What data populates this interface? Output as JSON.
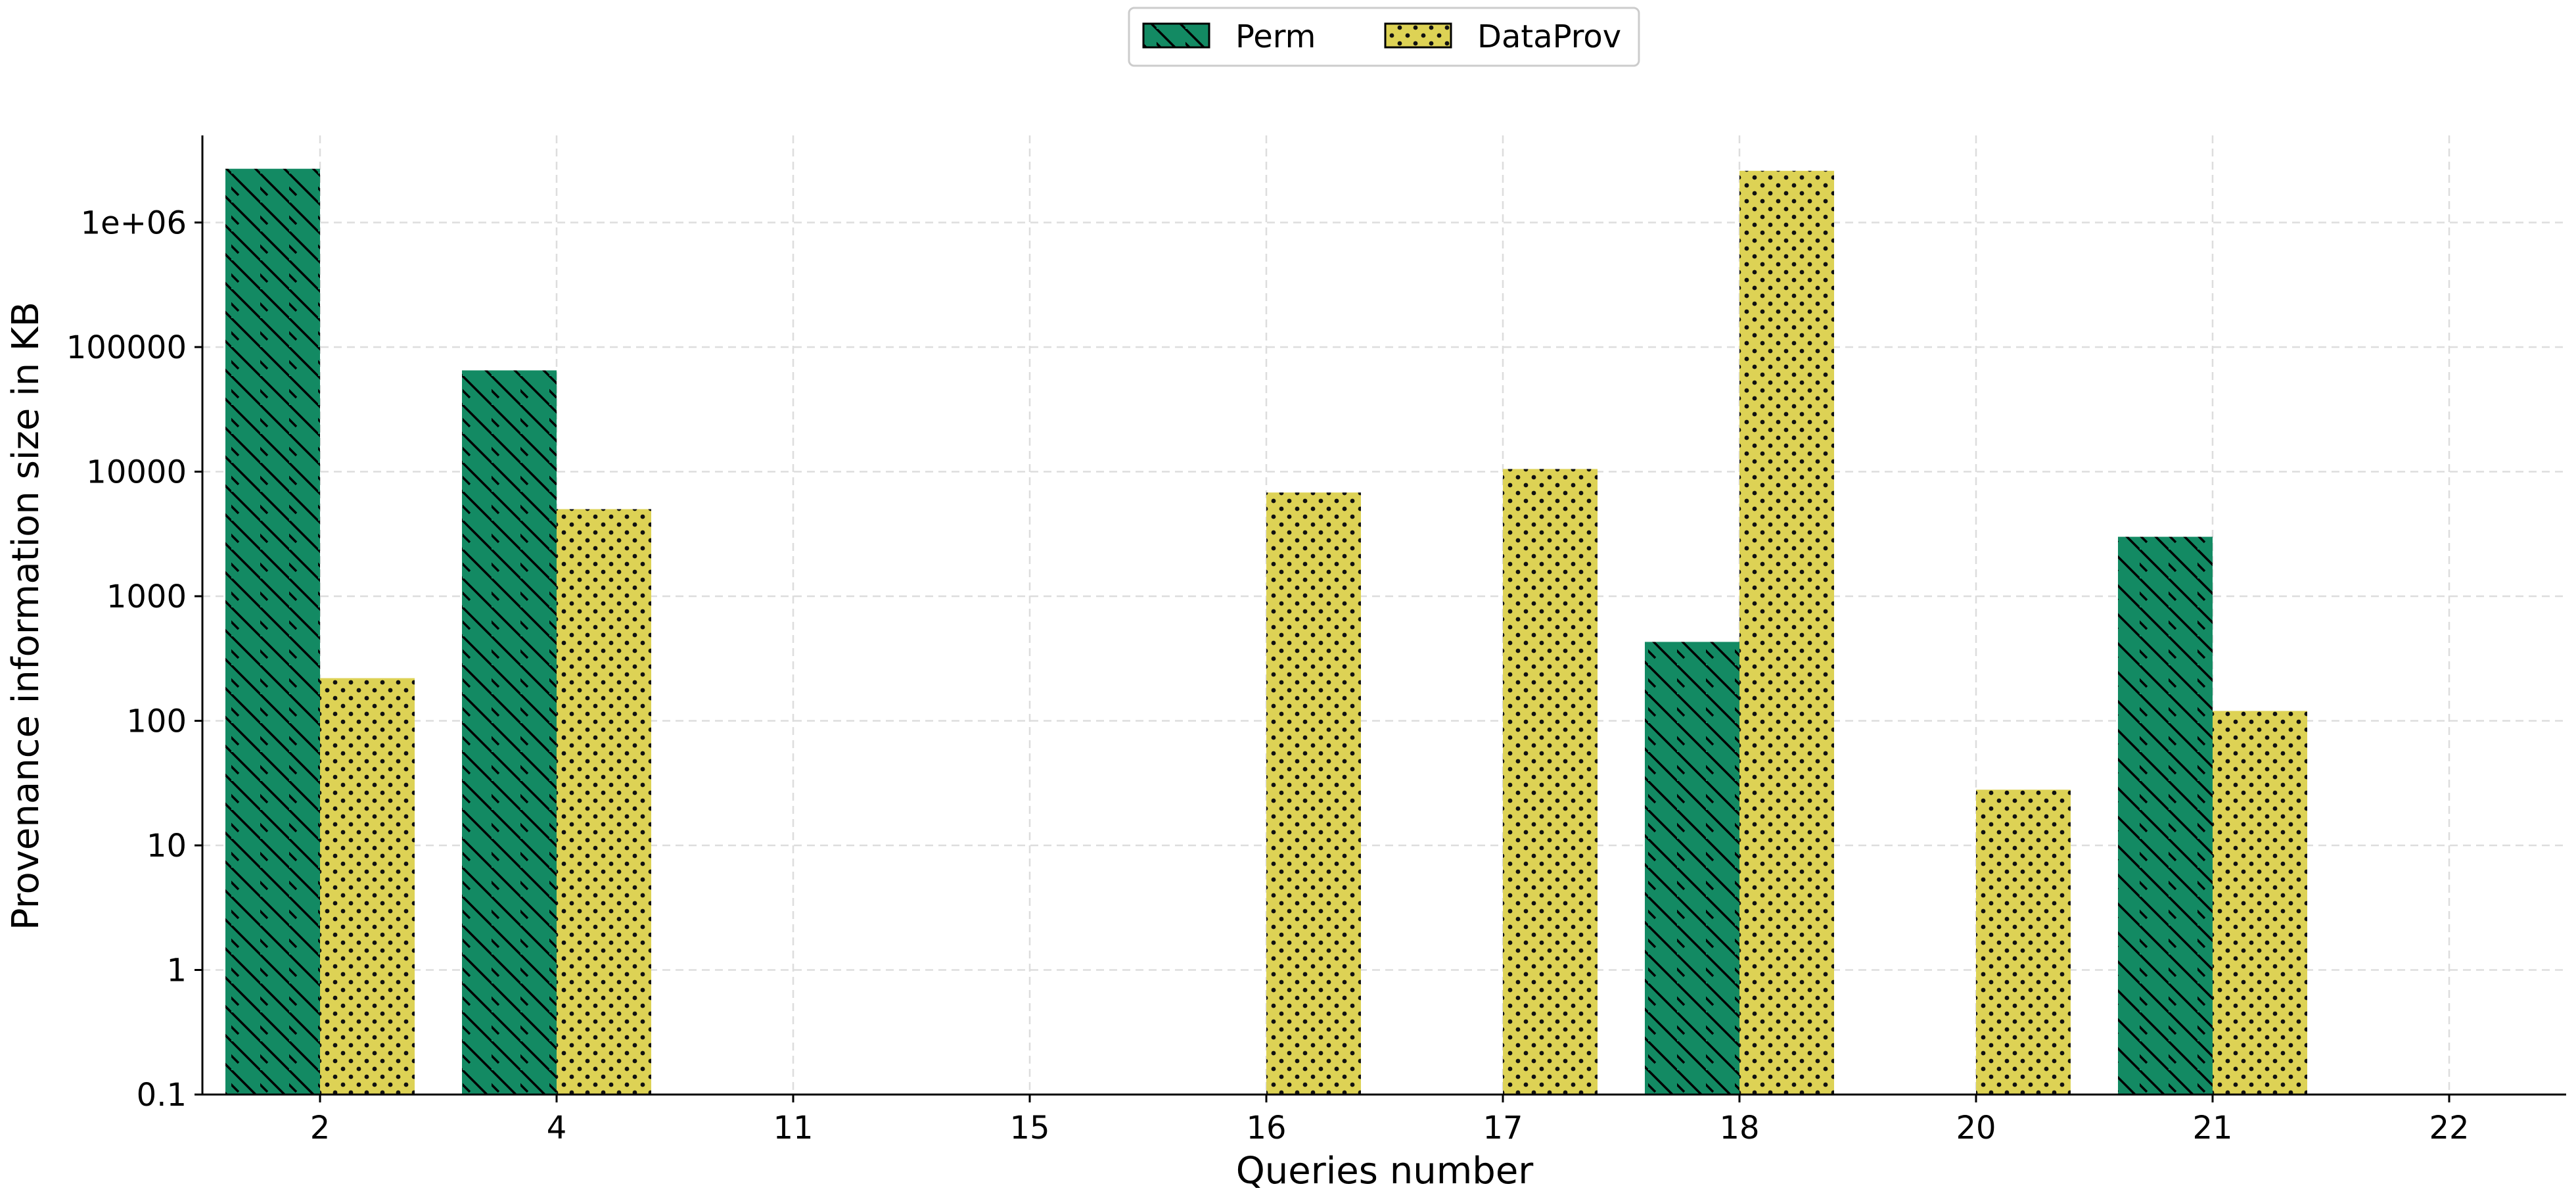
{
  "chart_data": {
    "type": "bar",
    "title": "",
    "xlabel": "Queries number",
    "ylabel": "Provenance information size in KB",
    "yscale": "log",
    "ylim": [
      0.1,
      5000000
    ],
    "yticks": [
      {
        "value": 0.1,
        "label": "0.1"
      },
      {
        "value": 1,
        "label": "1"
      },
      {
        "value": 10,
        "label": "10"
      },
      {
        "value": 100,
        "label": "100"
      },
      {
        "value": 1000,
        "label": "1000"
      },
      {
        "value": 10000,
        "label": "10000"
      },
      {
        "value": 100000,
        "label": "100000"
      },
      {
        "value": 1000000,
        "label": "1e+06"
      }
    ],
    "categories": [
      "2",
      "4",
      "11",
      "15",
      "16",
      "17",
      "18",
      "20",
      "21",
      "22"
    ],
    "grid": true,
    "legend_placement": "top-center",
    "series": [
      {
        "name": "Perm",
        "color": "#138a63",
        "pattern": "diagonal-hatch",
        "values": [
          2700000,
          65000,
          null,
          null,
          null,
          null,
          430,
          null,
          3000,
          null
        ]
      },
      {
        "name": "DataProv",
        "color": "#ddd255",
        "pattern": "dots",
        "values": [
          220,
          5000,
          null,
          null,
          6800,
          10500,
          2600000,
          28,
          120,
          null
        ]
      }
    ]
  }
}
